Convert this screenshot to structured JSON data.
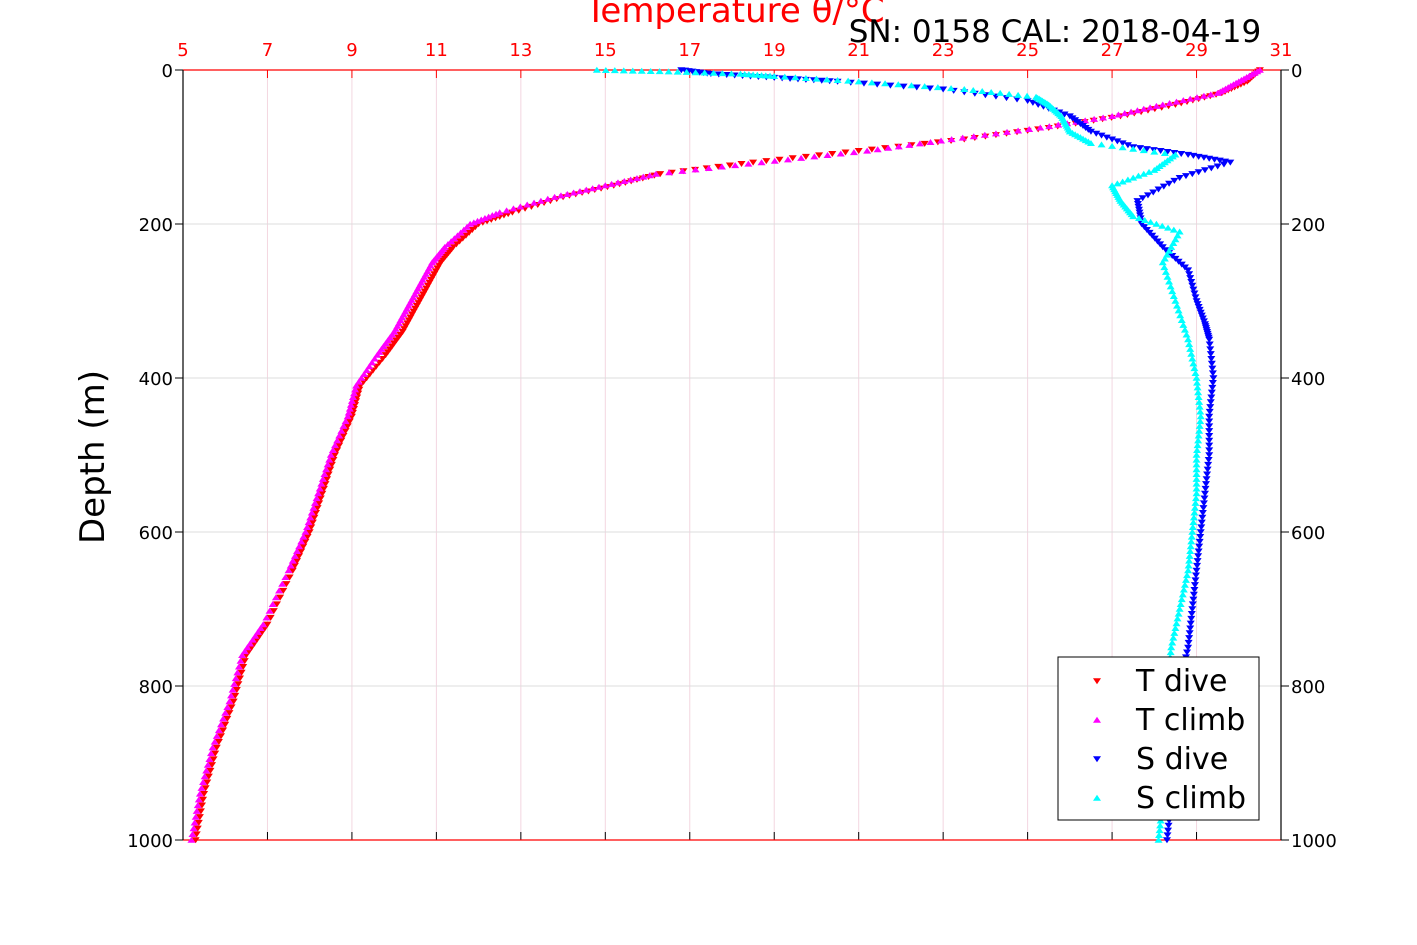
{
  "chart_data": {
    "type": "scatter",
    "title": "Temperature θ/°C",
    "subtitle": "SN: 0158  CAL: 2018-04-19",
    "xlabel": "Temperature θ/°C",
    "ylabel": "Depth (m)",
    "xlim": [
      5,
      31
    ],
    "ylim": [
      0,
      1000
    ],
    "y_reversed": true,
    "x_ticks": [
      "5",
      "7",
      "9",
      "11",
      "13",
      "15",
      "17",
      "19",
      "21",
      "23",
      "25",
      "27",
      "29",
      "31"
    ],
    "y_ticks": [
      "0",
      "200",
      "400",
      "600",
      "800",
      "1000"
    ],
    "grid": true,
    "legend_position": "bottom-right",
    "series": [
      {
        "name": "T dive",
        "color": "#ff0000",
        "marker": "triangle-down",
        "x": [
          30.5,
          30.2,
          29.6,
          28.5,
          27.2,
          25.5,
          23.5,
          21.0,
          18.5,
          16.3,
          15.2,
          14.0,
          12.8,
          12.0,
          11.4,
          11.1,
          10.8,
          10.5,
          10.2,
          9.8,
          9.2,
          9.0,
          8.6,
          8.3,
          8.0,
          7.6,
          7.0,
          6.5,
          6.2,
          5.8,
          5.5,
          5.3
        ],
        "y": [
          0,
          15,
          30,
          45,
          60,
          75,
          90,
          105,
          120,
          135,
          150,
          165,
          185,
          200,
          230,
          250,
          280,
          310,
          340,
          370,
          410,
          450,
          500,
          550,
          600,
          650,
          720,
          760,
          820,
          880,
          940,
          1000
        ]
      },
      {
        "name": "T climb",
        "color": "#ff00ff",
        "marker": "triangle-up",
        "x": [
          30.5,
          30.0,
          29.5,
          28.2,
          27.0,
          25.3,
          23.2,
          21.2,
          18.7,
          16.2,
          15.0,
          13.8,
          12.5,
          11.8,
          11.2,
          10.9,
          10.6,
          10.3,
          10.0,
          9.6,
          9.1,
          8.9,
          8.5,
          8.2,
          7.9,
          7.5,
          6.9,
          6.4,
          6.1,
          5.7,
          5.4,
          5.2
        ],
        "y": [
          0,
          15,
          30,
          45,
          60,
          75,
          90,
          105,
          120,
          135,
          150,
          165,
          185,
          200,
          230,
          250,
          280,
          310,
          340,
          370,
          410,
          450,
          500,
          550,
          600,
          650,
          720,
          760,
          820,
          880,
          940,
          1000
        ]
      },
      {
        "name": "S dive",
        "color": "#0000ff",
        "marker": "triangle-down",
        "x": [
          16.8,
          17.5,
          19.0,
          20.5,
          23.0,
          25.0,
          26.0,
          26.5,
          27.5,
          28.8,
          29.8,
          28.6,
          27.6,
          27.7,
          28.2,
          28.8,
          29.0,
          29.2,
          29.3,
          29.4,
          29.3,
          29.3,
          29.2,
          29.1,
          29.0,
          28.9,
          28.8,
          28.6,
          28.5,
          28.4,
          28.4,
          28.3
        ],
        "y": [
          0,
          5,
          10,
          15,
          25,
          40,
          60,
          80,
          100,
          110,
          120,
          140,
          170,
          200,
          230,
          260,
          300,
          330,
          350,
          400,
          450,
          500,
          550,
          600,
          650,
          700,
          750,
          800,
          850,
          900,
          950,
          1000
        ]
      },
      {
        "name": "S climb",
        "color": "#00ffff",
        "marker": "triangle-up",
        "x": [
          14.8,
          16.5,
          18.2,
          19.0,
          21.0,
          23.5,
          25.2,
          25.5,
          25.8,
          26.0,
          26.5,
          28.5,
          28.0,
          27.0,
          27.2,
          27.5,
          28.6,
          28.2,
          28.5,
          28.8,
          29.0,
          29.1,
          29.0,
          29.0,
          28.9,
          28.8,
          28.6,
          28.4,
          28.3,
          28.2,
          28.2,
          28.1
        ],
        "y": [
          0,
          2,
          5,
          8,
          15,
          25,
          35,
          45,
          60,
          80,
          95,
          110,
          130,
          150,
          170,
          190,
          210,
          250,
          300,
          350,
          400,
          450,
          500,
          550,
          600,
          650,
          700,
          750,
          800,
          850,
          950,
          1000
        ]
      }
    ]
  }
}
